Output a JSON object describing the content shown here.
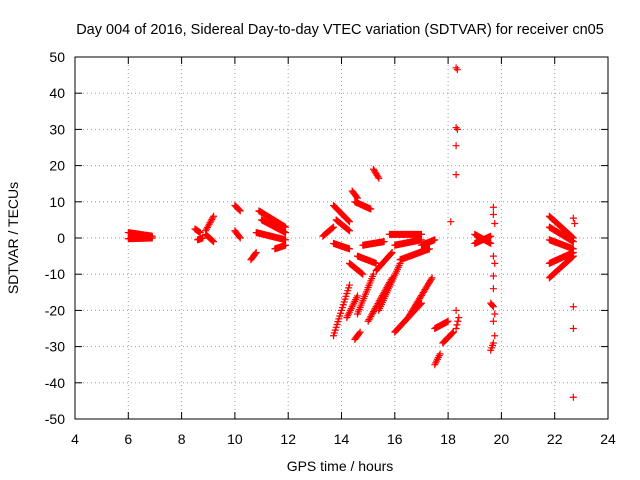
{
  "chart_data": {
    "type": "scatter",
    "title": "Day 004 of 2016, Sidereal Day-to-day VTEC variation (SDTVAR) for receiver cn05",
    "xlabel": "GPS time / hours",
    "ylabel": "SDTVAR / TECUs",
    "xlim": [
      4,
      24
    ],
    "ylim": [
      -50,
      50
    ],
    "xticks": [
      4,
      6,
      8,
      10,
      12,
      14,
      16,
      18,
      20,
      22,
      24
    ],
    "yticks": [
      -50,
      -40,
      -30,
      -20,
      -10,
      0,
      10,
      20,
      30,
      40,
      50
    ],
    "grid": true,
    "marker": "+",
    "color": "#ff0000",
    "series": [
      {
        "name": "sdtvar",
        "segments": [
          {
            "x0": 6.0,
            "y0": 1.5,
            "x1": 6.9,
            "y1": 0.5
          },
          {
            "x0": 6.0,
            "y0": -0.2,
            "x1": 6.9,
            "y1": 0.0
          },
          {
            "x0": 8.5,
            "y0": 2.5,
            "x1": 8.7,
            "y1": 1.5
          },
          {
            "x0": 8.6,
            "y0": -0.5,
            "x1": 8.8,
            "y1": 0.0
          },
          {
            "x0": 8.9,
            "y0": 2.0,
            "x1": 9.2,
            "y1": 6.0
          },
          {
            "x0": 8.9,
            "y0": 1.0,
            "x1": 9.2,
            "y1": -1.0
          },
          {
            "x0": 10.0,
            "y0": 9.0,
            "x1": 10.2,
            "y1": 7.5
          },
          {
            "x0": 10.0,
            "y0": 2.0,
            "x1": 10.2,
            "y1": 0.0
          },
          {
            "x0": 10.6,
            "y0": -6.0,
            "x1": 10.8,
            "y1": -4.0
          },
          {
            "x0": 10.8,
            "y0": 1.5,
            "x1": 11.9,
            "y1": -0.5
          },
          {
            "x0": 10.9,
            "y0": 7.5,
            "x1": 11.9,
            "y1": 3.0
          },
          {
            "x0": 11.0,
            "y0": 5.0,
            "x1": 11.9,
            "y1": 1.5
          },
          {
            "x0": 11.5,
            "y0": -3.0,
            "x1": 11.9,
            "y1": -2.0
          },
          {
            "x0": 13.3,
            "y0": 0.5,
            "x1": 13.7,
            "y1": 3.0
          },
          {
            "x0": 13.7,
            "y0": -1.5,
            "x1": 14.3,
            "y1": -3.0
          },
          {
            "x0": 13.7,
            "y0": 9.0,
            "x1": 14.3,
            "y1": 4.5
          },
          {
            "x0": 13.8,
            "y0": 5.0,
            "x1": 14.3,
            "y1": 2.0
          },
          {
            "x0": 13.7,
            "y0": -27.0,
            "x1": 14.3,
            "y1": -13.0
          },
          {
            "x0": 14.2,
            "y0": -22.0,
            "x1": 14.6,
            "y1": -16.0
          },
          {
            "x0": 14.4,
            "y0": 13.0,
            "x1": 14.6,
            "y1": 11.0
          },
          {
            "x0": 14.5,
            "y0": 10.0,
            "x1": 15.1,
            "y1": 8.0
          },
          {
            "x0": 14.3,
            "y0": -7.0,
            "x1": 14.8,
            "y1": -10.0
          },
          {
            "x0": 14.6,
            "y0": -5.0,
            "x1": 15.3,
            "y1": -7.0
          },
          {
            "x0": 14.5,
            "y0": -28.0,
            "x1": 14.7,
            "y1": -26.0
          },
          {
            "x0": 14.6,
            "y0": -21.0,
            "x1": 15.2,
            "y1": -10.0
          },
          {
            "x0": 15.2,
            "y0": 19.0,
            "x1": 15.4,
            "y1": 16.5
          },
          {
            "x0": 14.8,
            "y0": -2.0,
            "x1": 15.6,
            "y1": -1.0
          },
          {
            "x0": 15.3,
            "y0": -9.0,
            "x1": 15.9,
            "y1": -4.0
          },
          {
            "x0": 15.4,
            "y0": -20.0,
            "x1": 16.2,
            "y1": -7.0
          },
          {
            "x0": 15.0,
            "y0": -23.0,
            "x1": 15.9,
            "y1": -11.0
          },
          {
            "x0": 15.8,
            "y0": 1.0,
            "x1": 17.0,
            "y1": 1.0
          },
          {
            "x0": 16.0,
            "y0": -2.0,
            "x1": 17.0,
            "y1": -0.5
          },
          {
            "x0": 16.2,
            "y0": -6.0,
            "x1": 17.3,
            "y1": -3.0
          },
          {
            "x0": 16.0,
            "y0": -26.0,
            "x1": 17.0,
            "y1": -18.0
          },
          {
            "x0": 16.5,
            "y0": -22.0,
            "x1": 17.4,
            "y1": -11.0
          },
          {
            "x0": 17.0,
            "y0": -2.0,
            "x1": 17.5,
            "y1": -0.5
          },
          {
            "x0": 17.5,
            "y0": -35.0,
            "x1": 17.7,
            "y1": -32.0
          },
          {
            "x0": 17.5,
            "y0": -25.0,
            "x1": 18.0,
            "y1": -23.0
          },
          {
            "x0": 17.8,
            "y0": -29.0,
            "x1": 18.2,
            "y1": -26.0
          },
          {
            "x0": 18.3,
            "y0": -25.0,
            "x1": 18.4,
            "y1": -22.0
          },
          {
            "x0": 19.0,
            "y0": 1.0,
            "x1": 19.6,
            "y1": -1.5
          },
          {
            "x0": 19.0,
            "y0": -1.5,
            "x1": 19.6,
            "y1": 0.5
          },
          {
            "x0": 19.6,
            "y0": -31.0,
            "x1": 19.7,
            "y1": -29.0
          },
          {
            "x0": 19.6,
            "y0": -18.0,
            "x1": 19.7,
            "y1": -19.0
          },
          {
            "x0": 21.8,
            "y0": 6.0,
            "x1": 22.7,
            "y1": 0.0
          },
          {
            "x0": 21.8,
            "y0": 3.0,
            "x1": 22.7,
            "y1": -1.0
          },
          {
            "x0": 21.8,
            "y0": -0.5,
            "x1": 22.7,
            "y1": -3.0
          },
          {
            "x0": 21.8,
            "y0": -11.0,
            "x1": 22.7,
            "y1": -5.0
          },
          {
            "x0": 21.8,
            "y0": -7.0,
            "x1": 22.7,
            "y1": -4.0
          }
        ],
        "points": [
          [
            18.1,
            4.5
          ],
          [
            18.3,
            47.0
          ],
          [
            18.35,
            46.5
          ],
          [
            18.3,
            30.5
          ],
          [
            18.35,
            30.0
          ],
          [
            18.3,
            25.5
          ],
          [
            18.3,
            17.5
          ],
          [
            18.3,
            -20.0
          ],
          [
            19.7,
            8.5
          ],
          [
            19.75,
            4.0
          ],
          [
            19.7,
            6.5
          ],
          [
            19.7,
            -5.0
          ],
          [
            19.75,
            -7.0
          ],
          [
            19.7,
            -10.5
          ],
          [
            19.7,
            -14.0
          ],
          [
            19.75,
            -21.0
          ],
          [
            19.7,
            -23.0
          ],
          [
            19.75,
            -27.0
          ],
          [
            22.7,
            5.5
          ],
          [
            22.75,
            4.0
          ],
          [
            22.7,
            -19.0
          ],
          [
            22.7,
            -25.0
          ],
          [
            22.7,
            -44.0
          ]
        ]
      }
    ]
  }
}
